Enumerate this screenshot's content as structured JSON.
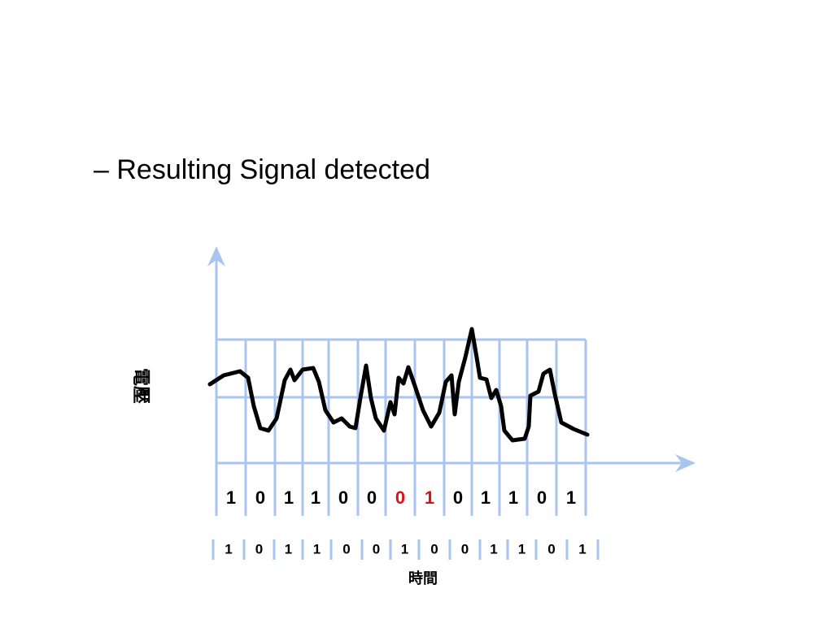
{
  "slide": {
    "bullet": "– Resulting Signal detected"
  },
  "diagram": {
    "y_axis_label": "電壓",
    "x_axis_label": "時間",
    "received_bits": [
      {
        "bit": "1",
        "color": "#000000"
      },
      {
        "bit": "0",
        "color": "#000000"
      },
      {
        "bit": "1",
        "color": "#000000"
      },
      {
        "bit": "1",
        "color": "#000000"
      },
      {
        "bit": "0",
        "color": "#000000"
      },
      {
        "bit": "0",
        "color": "#000000"
      },
      {
        "bit": "0",
        "color": "#e01010"
      },
      {
        "bit": "1",
        "color": "#e01010"
      },
      {
        "bit": "0",
        "color": "#000000"
      },
      {
        "bit": "1",
        "color": "#000000"
      },
      {
        "bit": "1",
        "color": "#000000"
      },
      {
        "bit": "0",
        "color": "#000000"
      },
      {
        "bit": "1",
        "color": "#000000"
      }
    ],
    "sent_bits": [
      "1",
      "0",
      "1",
      "1",
      "0",
      "0",
      "1",
      "0",
      "0",
      "1",
      "1",
      "0",
      "1"
    ]
  }
}
